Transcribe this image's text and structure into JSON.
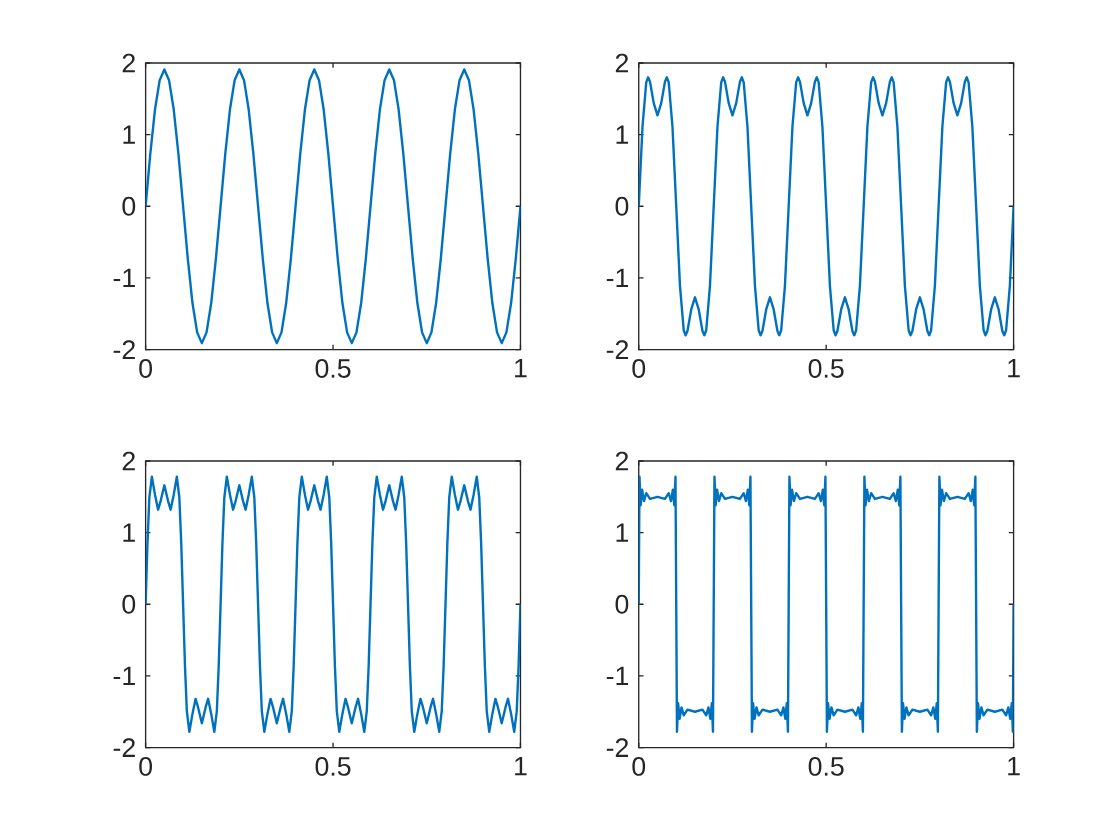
{
  "chart_data": [
    {
      "type": "line",
      "color": "#0072bd",
      "xlim": [
        0,
        1
      ],
      "ylim": [
        -2,
        2
      ],
      "xticks": [
        0,
        0.5,
        1
      ],
      "yticks": [
        -2,
        -1,
        0,
        1,
        2
      ],
      "x": [
        0,
        0.0125,
        0.025,
        0.0375,
        0.05,
        0.0625,
        0.075,
        0.0875,
        0.1,
        0.1125,
        0.125,
        0.1375,
        0.15,
        0.1625,
        0.175,
        0.1875,
        0.2,
        0.2125,
        0.225,
        0.2375,
        0.25,
        0.2625,
        0.275,
        0.2875,
        0.3,
        0.3125,
        0.325,
        0.3375,
        0.35,
        0.3625,
        0.375,
        0.3875,
        0.4,
        0.4125,
        0.425,
        0.4375,
        0.45,
        0.4625,
        0.475,
        0.4875,
        0.5,
        0.5125,
        0.525,
        0.5375,
        0.55,
        0.5625,
        0.575,
        0.5875,
        0.6,
        0.6125,
        0.625,
        0.6375,
        0.65,
        0.6625,
        0.675,
        0.6875,
        0.7,
        0.7125,
        0.725,
        0.7375,
        0.75,
        0.7625,
        0.775,
        0.7875,
        0.8,
        0.8125,
        0.825,
        0.8375,
        0.85,
        0.8625,
        0.875,
        0.8875,
        0.9,
        0.9125,
        0.925,
        0.9375,
        0.95,
        0.9625,
        0.975,
        0.9875,
        1
      ],
      "values": [
        0,
        0.73,
        1.35,
        1.76,
        1.91,
        1.76,
        1.35,
        0.73,
        0,
        -0.73,
        -1.35,
        -1.76,
        -1.91,
        -1.76,
        -1.35,
        -0.73,
        0,
        0.73,
        1.35,
        1.76,
        1.91,
        1.76,
        1.35,
        0.73,
        0,
        -0.73,
        -1.35,
        -1.76,
        -1.91,
        -1.76,
        -1.35,
        -0.73,
        0,
        0.73,
        1.35,
        1.76,
        1.91,
        1.76,
        1.35,
        0.73,
        0,
        -0.73,
        -1.35,
        -1.76,
        -1.91,
        -1.76,
        -1.35,
        -0.73,
        0,
        0.73,
        1.35,
        1.76,
        1.91,
        1.76,
        1.35,
        0.73,
        0,
        -0.73,
        -1.35,
        -1.76,
        -1.91,
        -1.76,
        -1.35,
        -0.73,
        0,
        0.73,
        1.35,
        1.76,
        1.91,
        1.76,
        1.35,
        0.73,
        0,
        -0.73,
        -1.35,
        -1.76,
        -1.91,
        -1.76,
        -1.35,
        -0.73,
        0
      ]
    },
    {
      "type": "line",
      "color": "#0072bd",
      "xlim": [
        0,
        1
      ],
      "ylim": [
        -2,
        2
      ],
      "xticks": [
        0,
        0.5,
        1
      ],
      "yticks": [
        -2,
        -1,
        0,
        1,
        2
      ],
      "x": [
        0,
        0.01,
        0.02,
        0.025,
        0.03,
        0.04,
        0.05,
        0.06,
        0.07,
        0.075,
        0.08,
        0.09,
        0.1,
        0.11,
        0.12,
        0.125,
        0.13,
        0.14,
        0.15,
        0.16,
        0.17,
        0.175,
        0.18,
        0.19,
        0.2,
        0.21,
        0.22,
        0.225,
        0.23,
        0.24,
        0.25,
        0.26,
        0.27,
        0.275,
        0.28,
        0.29,
        0.3,
        0.31,
        0.32,
        0.325,
        0.33,
        0.34,
        0.35,
        0.36,
        0.37,
        0.375,
        0.38,
        0.39,
        0.4,
        0.41,
        0.42,
        0.425,
        0.43,
        0.44,
        0.45,
        0.46,
        0.47,
        0.475,
        0.48,
        0.49,
        0.5,
        0.51,
        0.52,
        0.525,
        0.53,
        0.54,
        0.55,
        0.56,
        0.57,
        0.575,
        0.58,
        0.59,
        0.6,
        0.61,
        0.62,
        0.625,
        0.63,
        0.64,
        0.65,
        0.66,
        0.67,
        0.675,
        0.68,
        0.69,
        0.7,
        0.71,
        0.72,
        0.725,
        0.73,
        0.74,
        0.75,
        0.76,
        0.77,
        0.775,
        0.78,
        0.79,
        0.8,
        0.81,
        0.82,
        0.825,
        0.83,
        0.84,
        0.85,
        0.86,
        0.87,
        0.875,
        0.88,
        0.89,
        0.9,
        0.91,
        0.92,
        0.925,
        0.93,
        0.94,
        0.95,
        0.96,
        0.97,
        0.975,
        0.98,
        0.99,
        1
      ],
      "values": [
        0,
        1.11,
        1.73,
        1.8,
        1.74,
        1.44,
        1.27,
        1.44,
        1.74,
        1.8,
        1.73,
        1.11,
        0,
        -1.11,
        -1.73,
        -1.8,
        -1.74,
        -1.44,
        -1.27,
        -1.44,
        -1.74,
        -1.8,
        -1.73,
        -1.11,
        0,
        1.11,
        1.73,
        1.8,
        1.74,
        1.44,
        1.27,
        1.44,
        1.74,
        1.8,
        1.73,
        1.11,
        0,
        -1.11,
        -1.73,
        -1.8,
        -1.74,
        -1.44,
        -1.27,
        -1.44,
        -1.74,
        -1.8,
        -1.73,
        -1.11,
        0,
        1.11,
        1.73,
        1.8,
        1.74,
        1.44,
        1.27,
        1.44,
        1.74,
        1.8,
        1.73,
        1.11,
        0,
        -1.11,
        -1.73,
        -1.8,
        -1.74,
        -1.44,
        -1.27,
        -1.44,
        -1.74,
        -1.8,
        -1.73,
        -1.11,
        0,
        1.11,
        1.73,
        1.8,
        1.74,
        1.44,
        1.27,
        1.44,
        1.74,
        1.8,
        1.73,
        1.11,
        0,
        -1.11,
        -1.73,
        -1.8,
        -1.74,
        -1.44,
        -1.27,
        -1.44,
        -1.74,
        -1.8,
        -1.73,
        -1.11,
        0,
        1.11,
        1.73,
        1.8,
        1.74,
        1.44,
        1.27,
        1.44,
        1.74,
        1.8,
        1.73,
        1.11,
        0,
        -1.11,
        -1.73,
        -1.8,
        -1.74,
        -1.44,
        -1.27,
        -1.44,
        -1.74,
        -1.8,
        -1.73,
        -1.11,
        0
      ]
    },
    {
      "type": "line",
      "color": "#0072bd",
      "xlim": [
        0,
        1
      ],
      "ylim": [
        -2,
        2
      ],
      "xticks": [
        0,
        0.5,
        1
      ],
      "yticks": [
        -2,
        -1,
        0,
        1,
        2
      ],
      "x": [
        0,
        0.005,
        0.01,
        0.0167,
        0.025,
        0.0333,
        0.04,
        0.05,
        0.06,
        0.0667,
        0.075,
        0.0833,
        0.09,
        0.095,
        0.1,
        0.105,
        0.11,
        0.1167,
        0.125,
        0.1333,
        0.14,
        0.15,
        0.16,
        0.1667,
        0.175,
        0.1833,
        0.19,
        0.195,
        0.2,
        0.205,
        0.21,
        0.2167,
        0.225,
        0.2333,
        0.24,
        0.25,
        0.26,
        0.2667,
        0.275,
        0.2833,
        0.29,
        0.295,
        0.3,
        0.305,
        0.31,
        0.3167,
        0.325,
        0.3333,
        0.34,
        0.35,
        0.36,
        0.3667,
        0.375,
        0.3833,
        0.39,
        0.395,
        0.4,
        0.405,
        0.41,
        0.4167,
        0.425,
        0.4333,
        0.44,
        0.45,
        0.46,
        0.4667,
        0.475,
        0.4833,
        0.49,
        0.495,
        0.5,
        0.505,
        0.51,
        0.5167,
        0.525,
        0.5333,
        0.54,
        0.55,
        0.56,
        0.5667,
        0.575,
        0.5833,
        0.59,
        0.595,
        0.6,
        0.605,
        0.61,
        0.6167,
        0.625,
        0.6333,
        0.64,
        0.65,
        0.66,
        0.6667,
        0.675,
        0.6833,
        0.69,
        0.695,
        0.7,
        0.705,
        0.71,
        0.7167,
        0.725,
        0.7333,
        0.74,
        0.75,
        0.76,
        0.7667,
        0.775,
        0.7833,
        0.79,
        0.795,
        0.8,
        0.805,
        0.81,
        0.8167,
        0.825,
        0.8333,
        0.84,
        0.85,
        0.86,
        0.8667,
        0.875,
        0.8833,
        0.89,
        0.895,
        0.9,
        0.905,
        0.91,
        0.9167,
        0.925,
        0.9333,
        0.94,
        0.95,
        0.96,
        0.9667,
        0.975,
        0.9833,
        0.99,
        0.995,
        1
      ],
      "values": [
        0,
        0.86,
        1.49,
        1.78,
        1.53,
        1.32,
        1.44,
        1.66,
        1.44,
        1.32,
        1.53,
        1.78,
        1.49,
        0.86,
        0,
        -0.86,
        -1.49,
        -1.78,
        -1.53,
        -1.32,
        -1.44,
        -1.66,
        -1.44,
        -1.32,
        -1.53,
        -1.78,
        -1.49,
        -0.86,
        0,
        0.86,
        1.49,
        1.78,
        1.53,
        1.32,
        1.44,
        1.66,
        1.44,
        1.32,
        1.53,
        1.78,
        1.49,
        0.86,
        0,
        -0.86,
        -1.49,
        -1.78,
        -1.53,
        -1.32,
        -1.44,
        -1.66,
        -1.44,
        -1.32,
        -1.53,
        -1.78,
        -1.49,
        -0.86,
        0,
        0.86,
        1.49,
        1.78,
        1.53,
        1.32,
        1.44,
        1.66,
        1.44,
        1.32,
        1.53,
        1.78,
        1.49,
        0.86,
        0,
        -0.86,
        -1.49,
        -1.78,
        -1.53,
        -1.32,
        -1.44,
        -1.66,
        -1.44,
        -1.32,
        -1.53,
        -1.78,
        -1.49,
        -0.86,
        0,
        0.86,
        1.49,
        1.78,
        1.53,
        1.32,
        1.44,
        1.66,
        1.44,
        1.32,
        1.53,
        1.78,
        1.49,
        0.86,
        0,
        -0.86,
        -1.49,
        -1.78,
        -1.53,
        -1.32,
        -1.44,
        -1.66,
        -1.44,
        -1.32,
        -1.53,
        -1.78,
        -1.49,
        -0.86,
        0,
        0.86,
        1.49,
        1.78,
        1.53,
        1.32,
        1.44,
        1.66,
        1.44,
        1.32,
        1.53,
        1.78,
        1.49,
        0.86,
        0,
        -0.86,
        -1.49,
        -1.78,
        -1.53,
        -1.32,
        -1.44,
        -1.66,
        -1.44,
        -1.32,
        -1.53,
        -1.78,
        -1.49,
        -0.86,
        0
      ]
    },
    {
      "type": "line",
      "color": "#0072bd",
      "xlim": [
        0,
        1
      ],
      "ylim": [
        -2,
        2
      ],
      "xticks": [
        0,
        0.5,
        1
      ],
      "yticks": [
        -2,
        -1,
        0,
        1,
        2
      ],
      "x": [
        0,
        0.002,
        0.005,
        0.009,
        0.014,
        0.02,
        0.03,
        0.05,
        0.07,
        0.08,
        0.086,
        0.091,
        0.095,
        0.098,
        0.1,
        0.102,
        0.105,
        0.109,
        0.114,
        0.12,
        0.13,
        0.15,
        0.17,
        0.18,
        0.186,
        0.191,
        0.195,
        0.198,
        0.2,
        0.202,
        0.205,
        0.209,
        0.214,
        0.22,
        0.23,
        0.25,
        0.27,
        0.28,
        0.286,
        0.291,
        0.295,
        0.298,
        0.3,
        0.302,
        0.305,
        0.309,
        0.314,
        0.32,
        0.33,
        0.35,
        0.37,
        0.38,
        0.386,
        0.391,
        0.395,
        0.398,
        0.4,
        0.402,
        0.405,
        0.409,
        0.414,
        0.42,
        0.43,
        0.45,
        0.47,
        0.48,
        0.486,
        0.491,
        0.495,
        0.498,
        0.5,
        0.502,
        0.505,
        0.509,
        0.514,
        0.52,
        0.53,
        0.55,
        0.57,
        0.58,
        0.586,
        0.591,
        0.595,
        0.598,
        0.6,
        0.602,
        0.605,
        0.609,
        0.614,
        0.62,
        0.63,
        0.65,
        0.67,
        0.68,
        0.686,
        0.691,
        0.695,
        0.698,
        0.7,
        0.702,
        0.705,
        0.709,
        0.714,
        0.72,
        0.73,
        0.75,
        0.77,
        0.78,
        0.786,
        0.791,
        0.795,
        0.798,
        0.8,
        0.802,
        0.805,
        0.809,
        0.814,
        0.82,
        0.83,
        0.85,
        0.87,
        0.88,
        0.886,
        0.891,
        0.895,
        0.898,
        0.9,
        0.902,
        0.905,
        0.909,
        0.914,
        0.92,
        0.93,
        0.95,
        0.97,
        0.98,
        0.986,
        0.991,
        0.995,
        0.998,
        1
      ],
      "values": [
        0,
        1.78,
        1.38,
        1.6,
        1.44,
        1.55,
        1.47,
        1.5,
        1.47,
        1.55,
        1.44,
        1.6,
        1.38,
        1.78,
        0,
        -1.78,
        -1.38,
        -1.6,
        -1.44,
        -1.55,
        -1.47,
        -1.5,
        -1.47,
        -1.55,
        -1.44,
        -1.6,
        -1.38,
        -1.78,
        0,
        1.78,
        1.38,
        1.6,
        1.44,
        1.55,
        1.47,
        1.5,
        1.47,
        1.55,
        1.44,
        1.6,
        1.38,
        1.78,
        0,
        -1.78,
        -1.38,
        -1.6,
        -1.44,
        -1.55,
        -1.47,
        -1.5,
        -1.47,
        -1.55,
        -1.44,
        -1.6,
        -1.38,
        -1.78,
        0,
        1.78,
        1.38,
        1.6,
        1.44,
        1.55,
        1.47,
        1.5,
        1.47,
        1.55,
        1.44,
        1.6,
        1.38,
        1.78,
        0,
        -1.78,
        -1.38,
        -1.6,
        -1.44,
        -1.55,
        -1.47,
        -1.5,
        -1.47,
        -1.55,
        -1.44,
        -1.6,
        -1.38,
        -1.78,
        0,
        1.78,
        1.38,
        1.6,
        1.44,
        1.55,
        1.47,
        1.5,
        1.47,
        1.55,
        1.44,
        1.6,
        1.38,
        1.78,
        0,
        -1.78,
        -1.38,
        -1.6,
        -1.44,
        -1.55,
        -1.47,
        -1.5,
        -1.47,
        -1.55,
        -1.44,
        -1.6,
        -1.38,
        -1.78,
        0,
        1.78,
        1.38,
        1.6,
        1.44,
        1.55,
        1.47,
        1.5,
        1.47,
        1.55,
        1.44,
        1.6,
        1.38,
        1.78,
        0,
        -1.78,
        -1.38,
        -1.6,
        -1.44,
        -1.55,
        -1.47,
        -1.5,
        -1.47,
        -1.55,
        -1.44,
        -1.6,
        -1.38,
        -1.78,
        0
      ]
    }
  ]
}
